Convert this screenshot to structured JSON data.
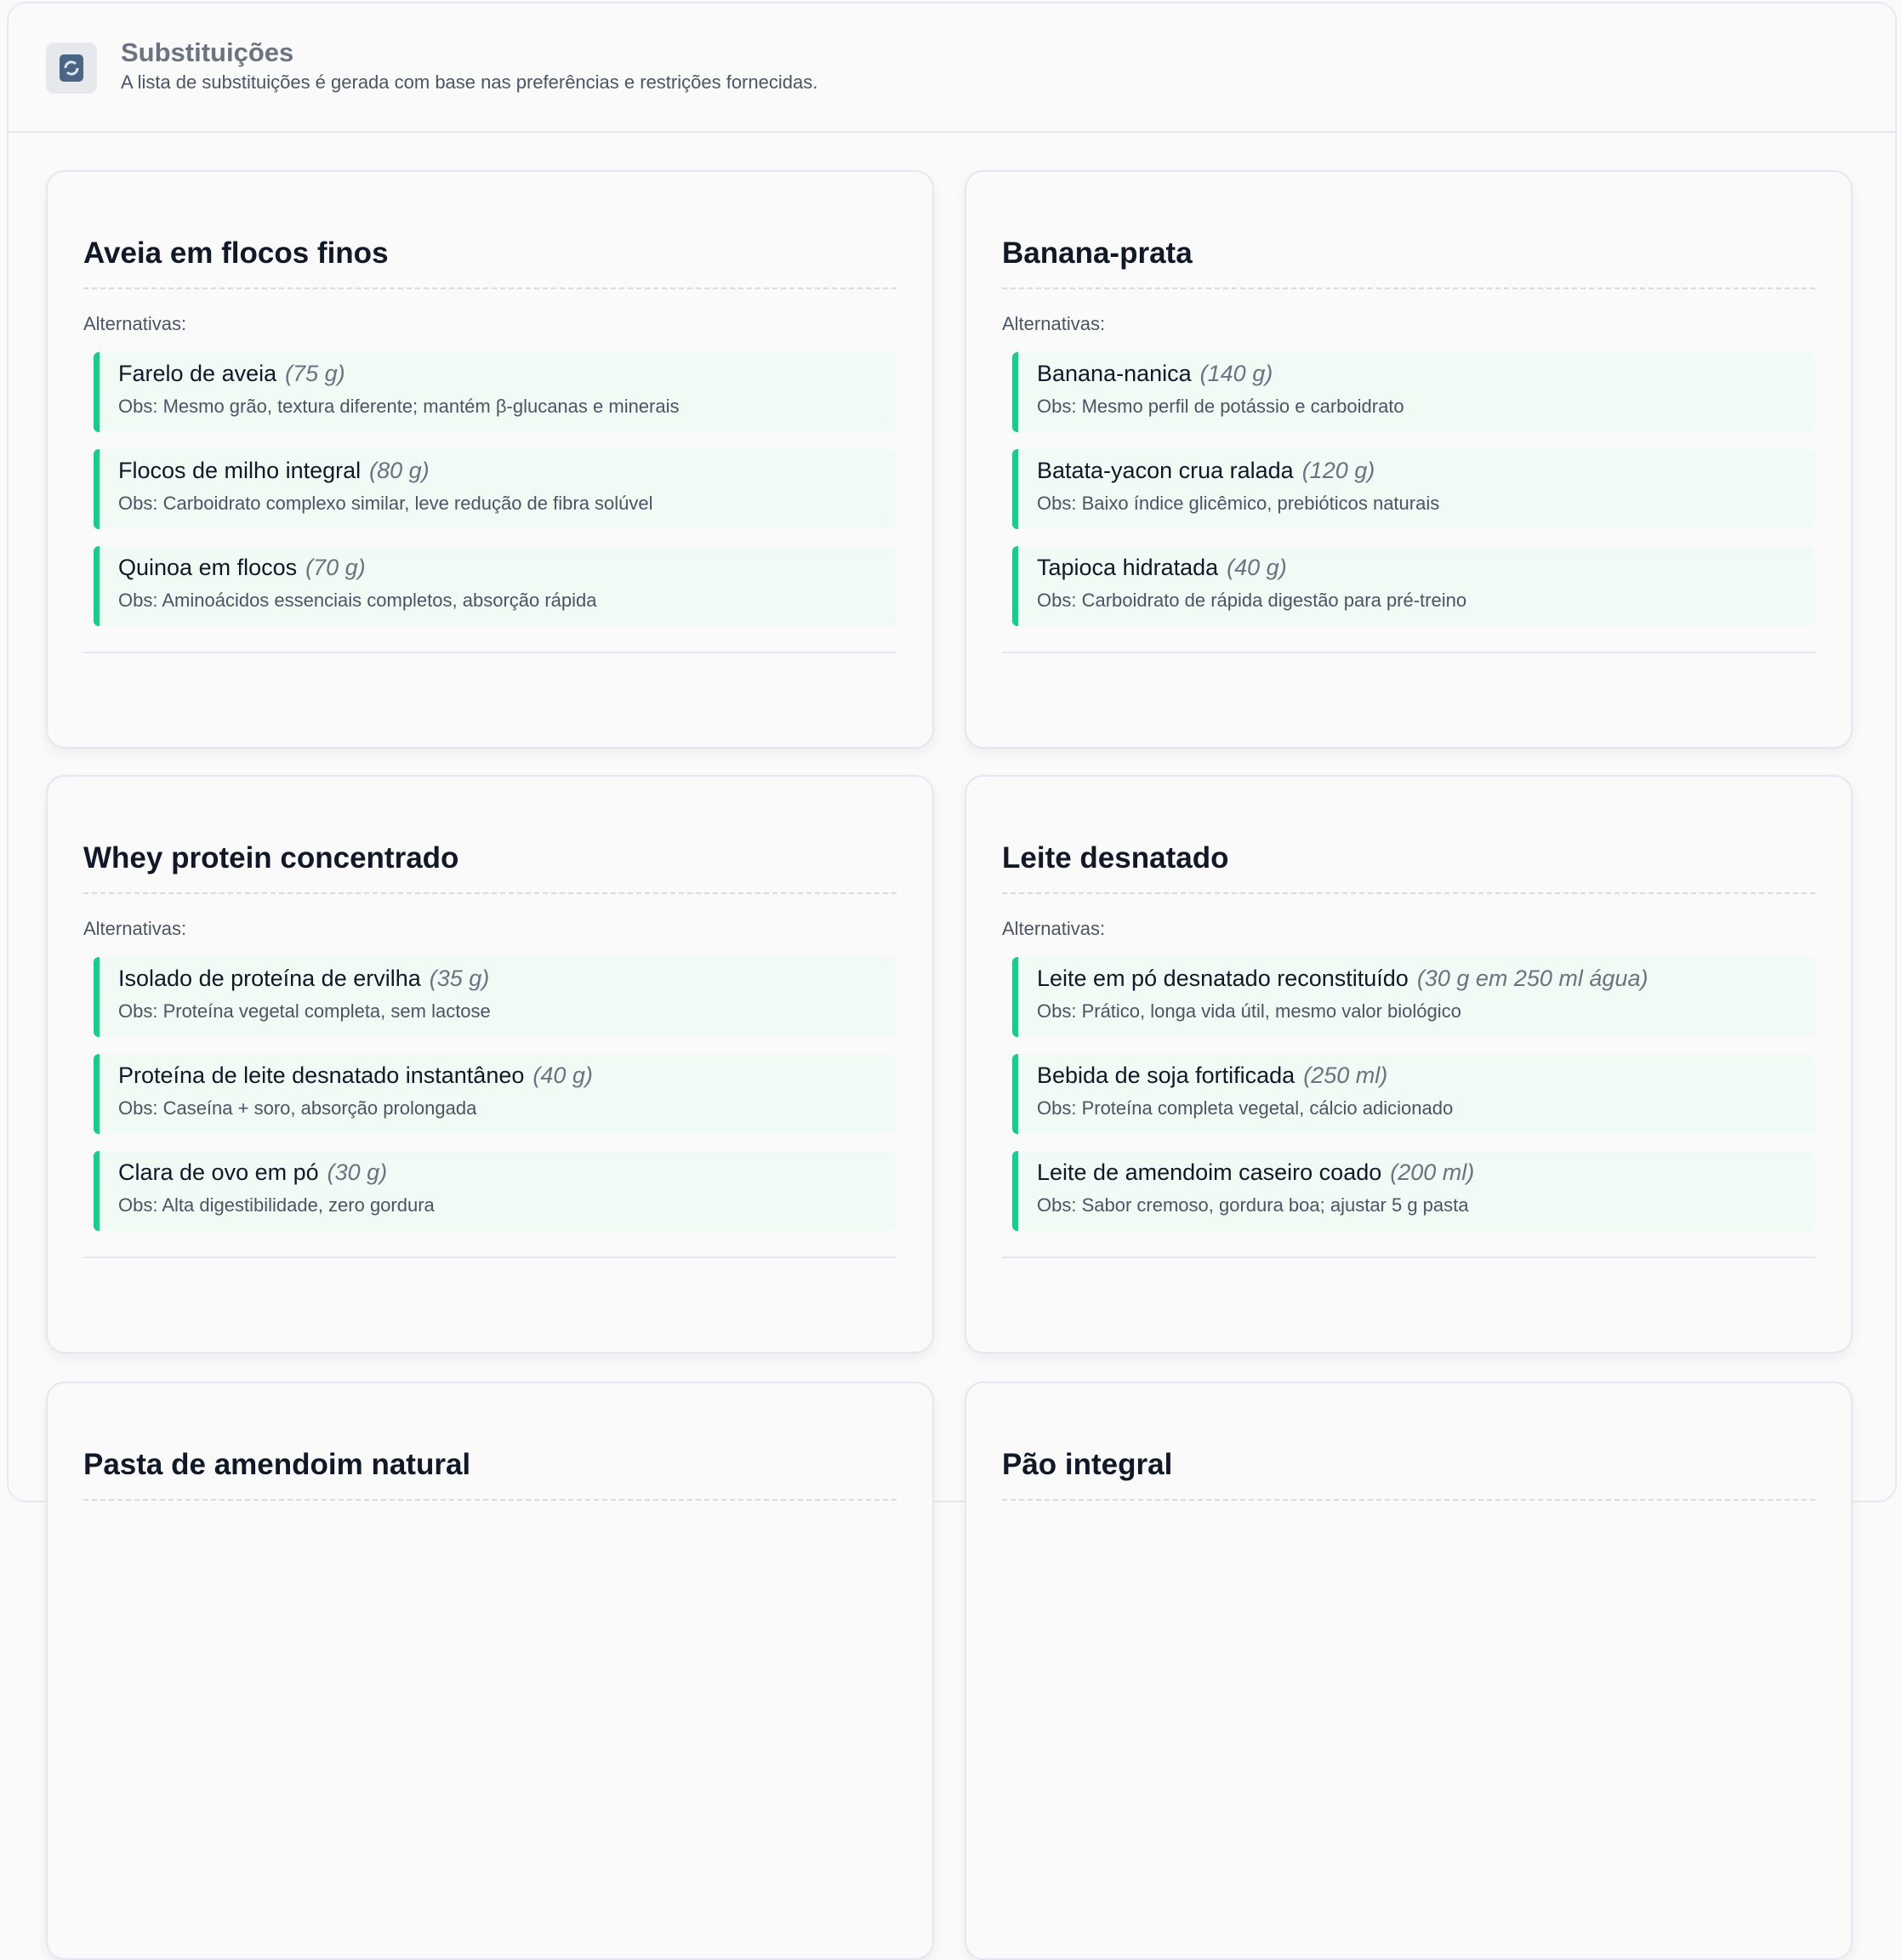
{
  "header": {
    "title": "Substituições",
    "subtitle": "A lista de substituições é gerada com base nas preferências e restrições fornecidas.",
    "icon": "refresh-icon"
  },
  "accent_color": "#1ec98b",
  "cards": [
    {
      "title": "Aveia em flocos finos",
      "alt_label": "Alternativas:",
      "items": [
        {
          "name": "Farelo de aveia",
          "qty": "(75 g)",
          "obs": "Obs: Mesmo grão, textura diferente; mantém β-glucanas e minerais"
        },
        {
          "name": "Flocos de milho integral",
          "qty": "(80 g)",
          "obs": "Obs: Carboidrato complexo similar, leve redução de fibra solúvel"
        },
        {
          "name": "Quinoa em flocos",
          "qty": "(70 g)",
          "obs": "Obs: Aminoácidos essenciais completos, absorção rápida"
        }
      ]
    },
    {
      "title": "Banana-prata",
      "alt_label": "Alternativas:",
      "items": [
        {
          "name": "Banana-nanica",
          "qty": "(140 g)",
          "obs": "Obs: Mesmo perfil de potássio e carboidrato"
        },
        {
          "name": "Batata-yacon crua ralada",
          "qty": "(120 g)",
          "obs": "Obs: Baixo índice glicêmico, prebióticos naturais"
        },
        {
          "name": "Tapioca hidratada",
          "qty": "(40 g)",
          "obs": "Obs: Carboidrato de rápida digestão para pré-treino"
        }
      ]
    },
    {
      "title": "Whey protein concentrado",
      "alt_label": "Alternativas:",
      "items": [
        {
          "name": "Isolado de proteína de ervilha",
          "qty": "(35 g)",
          "obs": "Obs: Proteína vegetal completa, sem lactose"
        },
        {
          "name": "Proteína de leite desnatado instantâneo",
          "qty": "(40 g)",
          "obs": "Obs: Caseína + soro, absorção prolongada"
        },
        {
          "name": "Clara de ovo em pó",
          "qty": "(30 g)",
          "obs": "Obs: Alta digestibilidade, zero gordura"
        }
      ]
    },
    {
      "title": "Leite desnatado",
      "alt_label": "Alternativas:",
      "items": [
        {
          "name": "Leite em pó desnatado reconstituído",
          "qty": "(30 g em 250 ml água)",
          "obs": "Obs: Prático, longa vida útil, mesmo valor biológico"
        },
        {
          "name": "Bebida de soja fortificada",
          "qty": "(250 ml)",
          "obs": "Obs: Proteína completa vegetal, cálcio adicionado"
        },
        {
          "name": "Leite de amendoim caseiro coado",
          "qty": "(200 ml)",
          "obs": "Obs: Sabor cremoso, gordura boa; ajustar 5 g pasta"
        }
      ]
    },
    {
      "title": "Pasta de amendoim natural"
    },
    {
      "title": "Pão integral"
    }
  ]
}
